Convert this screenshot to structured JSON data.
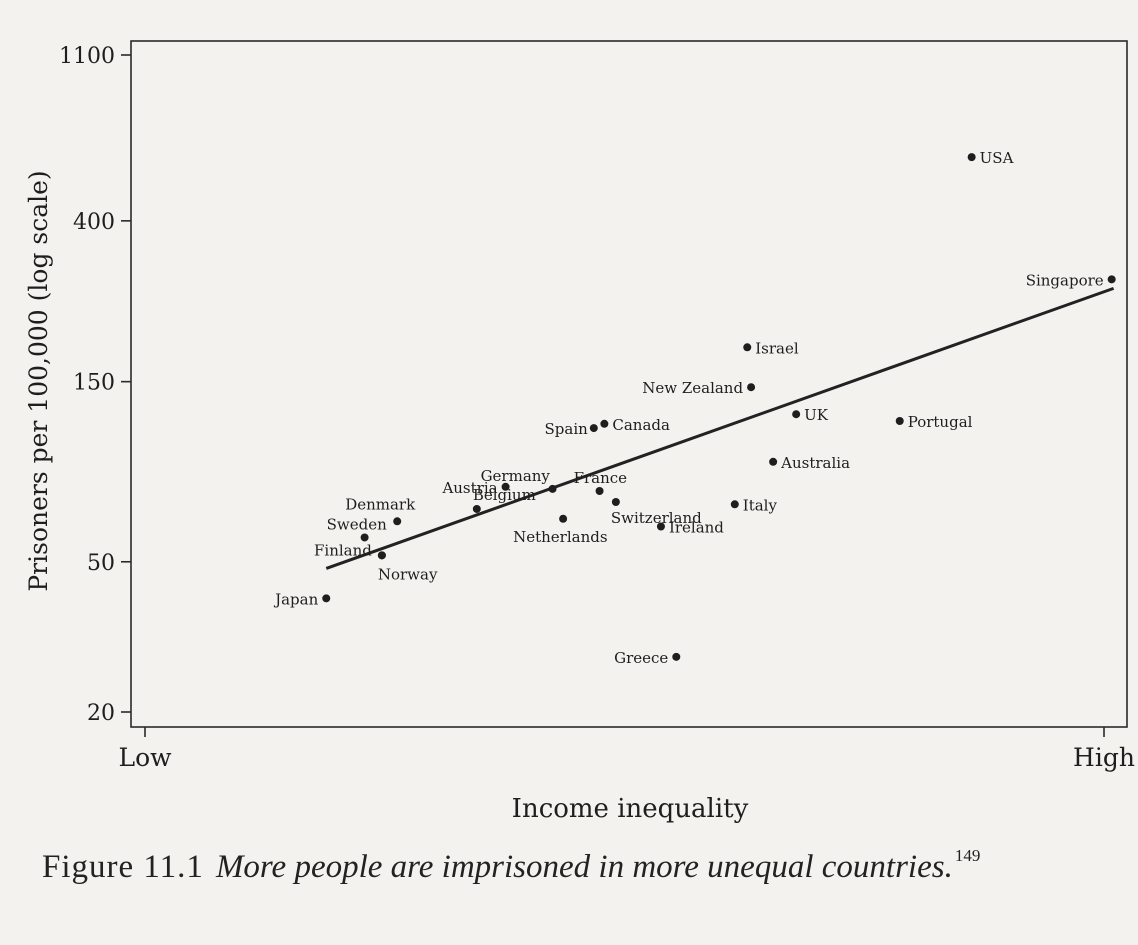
{
  "chart_data": {
    "type": "scatter",
    "title": "",
    "xlabel": "Income inequality",
    "ylabel": "Prisoners per 100,000 (log scale)",
    "x_scale": "ordinal",
    "x_tick_labels": [
      "Low",
      "High"
    ],
    "y_scale": "log",
    "y_ticks": [
      20,
      50,
      150,
      400,
      1100
    ],
    "y_tick_labels": [
      "20",
      "50",
      "150",
      "400",
      "1100"
    ],
    "ylim": [
      20,
      1100
    ],
    "grid": false,
    "legend": "none",
    "x_range": [
      0,
      100
    ],
    "points": [
      {
        "label": "Japan",
        "x": 18.9,
        "y": 40
      },
      {
        "label": "Finland",
        "x": 24.7,
        "y": 52
      },
      {
        "label": "Norway",
        "x": 24.7,
        "y": 52
      },
      {
        "label": "Sweden",
        "x": 22.9,
        "y": 58
      },
      {
        "label": "Denmark",
        "x": 26.3,
        "y": 64
      },
      {
        "label": "Belgium",
        "x": 34.6,
        "y": 69
      },
      {
        "label": "Austria",
        "x": 37.6,
        "y": 79
      },
      {
        "label": "Germany",
        "x": 42.5,
        "y": 78
      },
      {
        "label": "Netherlands",
        "x": 43.6,
        "y": 65
      },
      {
        "label": "Spain",
        "x": 46.8,
        "y": 113
      },
      {
        "label": "Canada",
        "x": 47.9,
        "y": 116
      },
      {
        "label": "France",
        "x": 47.4,
        "y": 77
      },
      {
        "label": "Switzerland",
        "x": 49.1,
        "y": 72
      },
      {
        "label": "Ireland",
        "x": 53.8,
        "y": 62
      },
      {
        "label": "Greece",
        "x": 55.4,
        "y": 28
      },
      {
        "label": "Italy",
        "x": 61.5,
        "y": 71
      },
      {
        "label": "Israel",
        "x": 62.8,
        "y": 185
      },
      {
        "label": "New Zealand",
        "x": 63.2,
        "y": 145
      },
      {
        "label": "Australia",
        "x": 65.5,
        "y": 92
      },
      {
        "label": "UK",
        "x": 67.9,
        "y": 123
      },
      {
        "label": "Portugal",
        "x": 78.7,
        "y": 118
      },
      {
        "label": "USA",
        "x": 86.2,
        "y": 590
      },
      {
        "label": "Singapore",
        "x": 100.8,
        "y": 280
      }
    ],
    "trendline": {
      "x": [
        18.9,
        101.0
      ],
      "y": [
        48,
        265
      ]
    }
  },
  "caption": {
    "figure_number": "Figure 11.1",
    "text": "More people are imprisoned in more unequal countries.",
    "superscript": "149"
  }
}
